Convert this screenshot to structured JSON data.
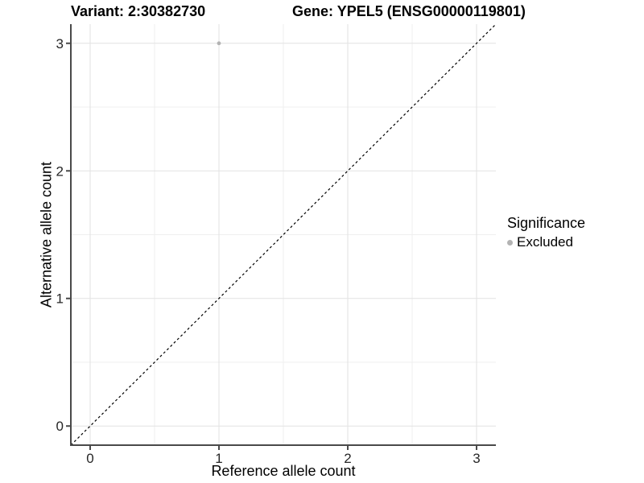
{
  "title": {
    "variant": "Variant: 2:30382730",
    "gene": "Gene: YPEL5 (ENSG00000119801)"
  },
  "chart_data": {
    "type": "scatter",
    "title": "Variant: 2:30382730    Gene: YPEL5 (ENSG00000119801)",
    "xlabel": "Reference allele count",
    "ylabel": "Alternative allele count",
    "xlim": [
      -0.15,
      3.15
    ],
    "ylim": [
      -0.15,
      3.15
    ],
    "xticks": [
      0,
      1,
      2,
      3
    ],
    "yticks": [
      0,
      1,
      2,
      3
    ],
    "minor_gridlines_x": [
      0.5,
      1.5,
      2.5
    ],
    "minor_gridlines_y": [
      0.5,
      1.5,
      2.5
    ],
    "grid": true,
    "identity_line": {
      "type": "dashed",
      "equation": "y = x",
      "color": "#000000"
    },
    "series": [
      {
        "name": "Excluded",
        "color": "#b3b3b3",
        "points": [
          {
            "x": 1,
            "y": 3
          }
        ]
      }
    ],
    "legend": {
      "title": "Significance",
      "position": "right",
      "items": [
        {
          "label": "Excluded",
          "color": "#b3b3b3"
        }
      ]
    },
    "colors": {
      "grid_major": "#e2e2e2",
      "grid_minor": "#efefef",
      "axis_line": "#4a4a4a",
      "tick_mark": "#4a4a4a",
      "tick_label": "#262626",
      "background": "#ffffff"
    }
  }
}
